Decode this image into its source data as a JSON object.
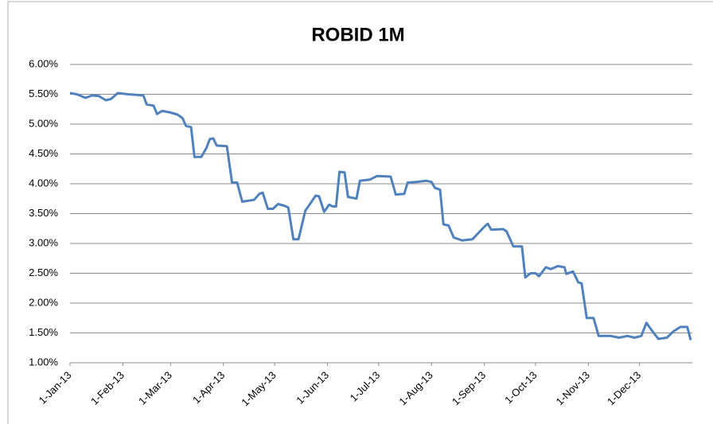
{
  "chart_data": {
    "type": "line",
    "title": "ROBID 1M",
    "color": "#4f81bd",
    "x": [
      "2013-01-01",
      "2013-01-05",
      "2013-01-10",
      "2013-01-14",
      "2013-01-18",
      "2013-01-22",
      "2013-01-25",
      "2013-01-29",
      "2013-02-04",
      "2013-02-09",
      "2013-02-13",
      "2013-02-15",
      "2013-02-19",
      "2013-02-21",
      "2013-02-24",
      "2013-02-28",
      "2013-03-05",
      "2013-03-08",
      "2013-03-10",
      "2013-03-13",
      "2013-03-15",
      "2013-03-19",
      "2013-03-22",
      "2013-03-24",
      "2013-03-26",
      "2013-03-28",
      "2013-04-03",
      "2013-04-06",
      "2013-04-09",
      "2013-04-12",
      "2013-04-19",
      "2013-04-22",
      "2013-04-24",
      "2013-04-27",
      "2013-04-30",
      "2013-05-03",
      "2013-05-07",
      "2013-05-09",
      "2013-05-12",
      "2013-05-15",
      "2013-05-19",
      "2013-05-21",
      "2013-05-25",
      "2013-05-27",
      "2013-05-30",
      "2013-06-02",
      "2013-06-04",
      "2013-06-06",
      "2013-06-08",
      "2013-06-11",
      "2013-06-13",
      "2013-06-18",
      "2013-06-20",
      "2013-06-26",
      "2013-06-30",
      "2013-07-08",
      "2013-07-11",
      "2013-07-16",
      "2013-07-18",
      "2013-07-23",
      "2013-07-29",
      "2013-08-01",
      "2013-08-03",
      "2013-08-06",
      "2013-08-08",
      "2013-08-11",
      "2013-08-14",
      "2013-08-19",
      "2013-08-25",
      "2013-08-30",
      "2013-09-01",
      "2013-09-03",
      "2013-09-05",
      "2013-09-12",
      "2013-09-14",
      "2013-09-18",
      "2013-09-23",
      "2013-09-25",
      "2013-09-28",
      "2013-10-01",
      "2013-10-03",
      "2013-10-07",
      "2013-10-10",
      "2013-10-14",
      "2013-10-18",
      "2013-10-19",
      "2013-10-23",
      "2013-10-26",
      "2013-10-28",
      "2013-10-31",
      "2013-11-04",
      "2013-11-07",
      "2013-11-14",
      "2013-11-19",
      "2013-11-24",
      "2013-11-28",
      "2013-12-02",
      "2013-12-05",
      "2013-12-08",
      "2013-12-12",
      "2013-12-17",
      "2013-12-21",
      "2013-12-25",
      "2013-12-29",
      "2013-12-31"
    ],
    "values": [
      5.52,
      5.5,
      5.44,
      5.48,
      5.47,
      5.4,
      5.42,
      5.52,
      5.5,
      5.49,
      5.48,
      5.33,
      5.31,
      5.17,
      5.22,
      5.2,
      5.16,
      5.1,
      4.97,
      4.95,
      4.45,
      4.45,
      4.6,
      4.75,
      4.76,
      4.64,
      4.63,
      4.02,
      4.02,
      3.7,
      3.73,
      3.83,
      3.85,
      3.58,
      3.58,
      3.66,
      3.63,
      3.6,
      3.07,
      3.07,
      3.55,
      3.63,
      3.8,
      3.79,
      3.53,
      3.65,
      3.62,
      3.62,
      4.2,
      4.19,
      3.78,
      3.75,
      4.05,
      4.07,
      4.13,
      4.12,
      3.82,
      3.83,
      4.02,
      4.03,
      4.05,
      4.03,
      3.93,
      3.9,
      3.32,
      3.3,
      3.1,
      3.05,
      3.07,
      3.22,
      3.28,
      3.33,
      3.23,
      3.24,
      3.2,
      2.95,
      2.95,
      2.43,
      2.5,
      2.5,
      2.45,
      2.6,
      2.57,
      2.62,
      2.6,
      2.49,
      2.53,
      2.35,
      2.33,
      1.75,
      1.75,
      1.45,
      1.45,
      1.42,
      1.45,
      1.42,
      1.45,
      1.67,
      1.55,
      1.4,
      1.42,
      1.53,
      1.6,
      1.6,
      1.38
    ],
    "xlim": [
      "2013-01-01",
      "2013-12-31"
    ],
    "xticks": [
      {
        "value": "2013-01-01",
        "label": "1-Jan-13"
      },
      {
        "value": "2013-02-01",
        "label": "1-Feb-13"
      },
      {
        "value": "2013-03-01",
        "label": "1-Mar-13"
      },
      {
        "value": "2013-04-01",
        "label": "1-Apr-13"
      },
      {
        "value": "2013-05-01",
        "label": "1-May-13"
      },
      {
        "value": "2013-06-01",
        "label": "1-Jun-13"
      },
      {
        "value": "2013-07-01",
        "label": "1-Jul-13"
      },
      {
        "value": "2013-08-01",
        "label": "1-Aug-13"
      },
      {
        "value": "2013-09-01",
        "label": "1-Sep-13"
      },
      {
        "value": "2013-10-01",
        "label": "1-Oct-13"
      },
      {
        "value": "2013-11-01",
        "label": "1-Nov-13"
      },
      {
        "value": "2013-12-01",
        "label": "1-Dec-13"
      }
    ],
    "ylim": [
      1,
      6
    ],
    "yticks": [
      {
        "value": 1,
        "label": "1.00%"
      },
      {
        "value": 1.5,
        "label": "1.50%"
      },
      {
        "value": 2,
        "label": "2.00%"
      },
      {
        "value": 2.5,
        "label": "2.50%"
      },
      {
        "value": 3,
        "label": "3.00%"
      },
      {
        "value": 3.5,
        "label": "3.50%"
      },
      {
        "value": 4,
        "label": "4.00%"
      },
      {
        "value": 4.5,
        "label": "4.50%"
      },
      {
        "value": 5,
        "label": "5.00%"
      },
      {
        "value": 5.5,
        "label": "5.50%"
      },
      {
        "value": 6,
        "label": "6.00%"
      }
    ],
    "grid": true
  }
}
